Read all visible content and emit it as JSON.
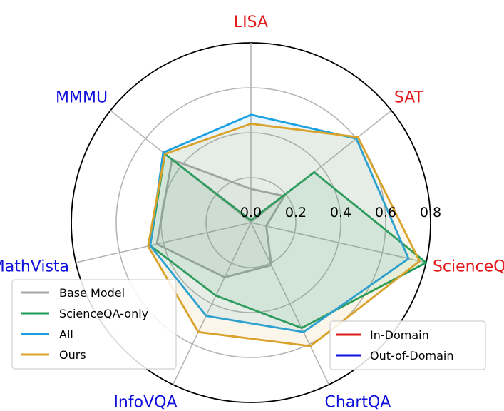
{
  "chart_data": {
    "type": "radar",
    "axes": [
      {
        "label": "LISA",
        "domain": "in"
      },
      {
        "label": "SAT",
        "domain": "in"
      },
      {
        "label": "ScienceQA",
        "domain": "in"
      },
      {
        "label": "ChartQA",
        "domain": "out"
      },
      {
        "label": "InfoVQA",
        "domain": "out"
      },
      {
        "label": "MathVista",
        "domain": "out"
      },
      {
        "label": "MMMU",
        "domain": "out"
      }
    ],
    "radial_ticks": [
      "0.0",
      "0.2",
      "0.4",
      "0.6",
      "0.8"
    ],
    "radial_tick_values": [
      0.0,
      0.2,
      0.4,
      0.6,
      0.8
    ],
    "rmax": 0.8,
    "series": [
      {
        "name": "Base Model",
        "color": "#a6a6a6",
        "values": [
          0.15,
          0.19,
          0.07,
          0.21,
          0.27,
          0.43,
          0.45
        ]
      },
      {
        "name": "ScienceQA-only",
        "color": "#1d9b57",
        "values": [
          0.01,
          0.36,
          0.8,
          0.52,
          0.36,
          0.46,
          0.49
        ]
      },
      {
        "name": "All",
        "color": "#1ba1e2",
        "values": [
          0.48,
          0.6,
          0.72,
          0.54,
          0.46,
          0.46,
          0.5
        ]
      },
      {
        "name": "Ours",
        "color": "#d9a22a",
        "values": [
          0.44,
          0.61,
          0.77,
          0.61,
          0.54,
          0.47,
          0.49
        ]
      }
    ],
    "domain_legend": [
      {
        "label": "In-Domain",
        "color": "#e31a1c"
      },
      {
        "label": "Out-of-Domain",
        "color": "#1010dd"
      }
    ],
    "grid": true
  }
}
